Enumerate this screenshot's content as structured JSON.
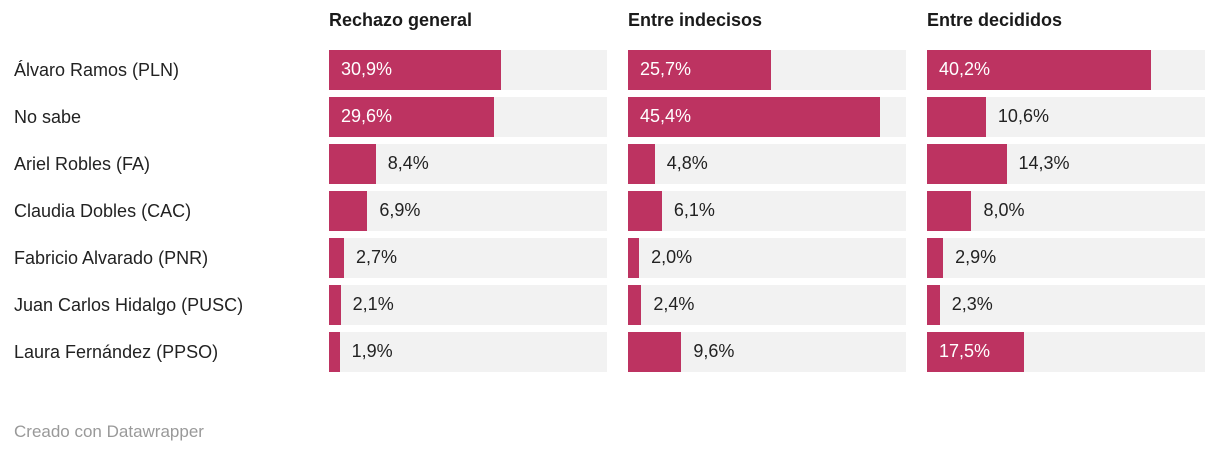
{
  "chart_data": {
    "type": "bar",
    "orientation": "horizontal",
    "title": "",
    "categories": [
      "Álvaro Ramos (PLN)",
      "No sabe",
      "Ariel Robles (FA)",
      "Claudia Dobles (CAC)",
      "Fabricio Alvarado (PNR)",
      "Juan Carlos Hidalgo (PUSC)",
      "Laura Fernández (PPSO)"
    ],
    "series": [
      {
        "name": "Rechazo general",
        "values": [
          30.9,
          29.6,
          8.4,
          6.9,
          2.7,
          2.1,
          1.9
        ],
        "labels": [
          "30,9%",
          "29,6%",
          "8,4%",
          "6,9%",
          "2,7%",
          "2,1%",
          "1,9%"
        ]
      },
      {
        "name": "Entre indecisos",
        "values": [
          25.7,
          45.4,
          4.8,
          6.1,
          2.0,
          2.4,
          9.6
        ],
        "labels": [
          "25,7%",
          "45,4%",
          "4,8%",
          "6,1%",
          "2,0%",
          "2,4%",
          "9,6%"
        ]
      },
      {
        "name": "Entre decididos",
        "values": [
          40.2,
          10.6,
          14.3,
          8.0,
          2.9,
          2.3,
          17.5
        ],
        "labels": [
          "40,2%",
          "10,6%",
          "14,3%",
          "8,0%",
          "2,9%",
          "2,3%",
          "17,5%"
        ]
      }
    ],
    "xlim": [
      0,
      50
    ],
    "grid": false,
    "legend_position": "column-headers",
    "value_format": "decimal-comma-percent"
  },
  "footer": {
    "credit": "Creado con Datawrapper"
  },
  "colors": {
    "bar": "#bd3361",
    "track": "#f2f2f2",
    "header_text": "#1a1a1a",
    "label_text": "#222222",
    "value_inside": "#ffffff",
    "value_outside": "#222222",
    "credit_text": "#999999"
  }
}
